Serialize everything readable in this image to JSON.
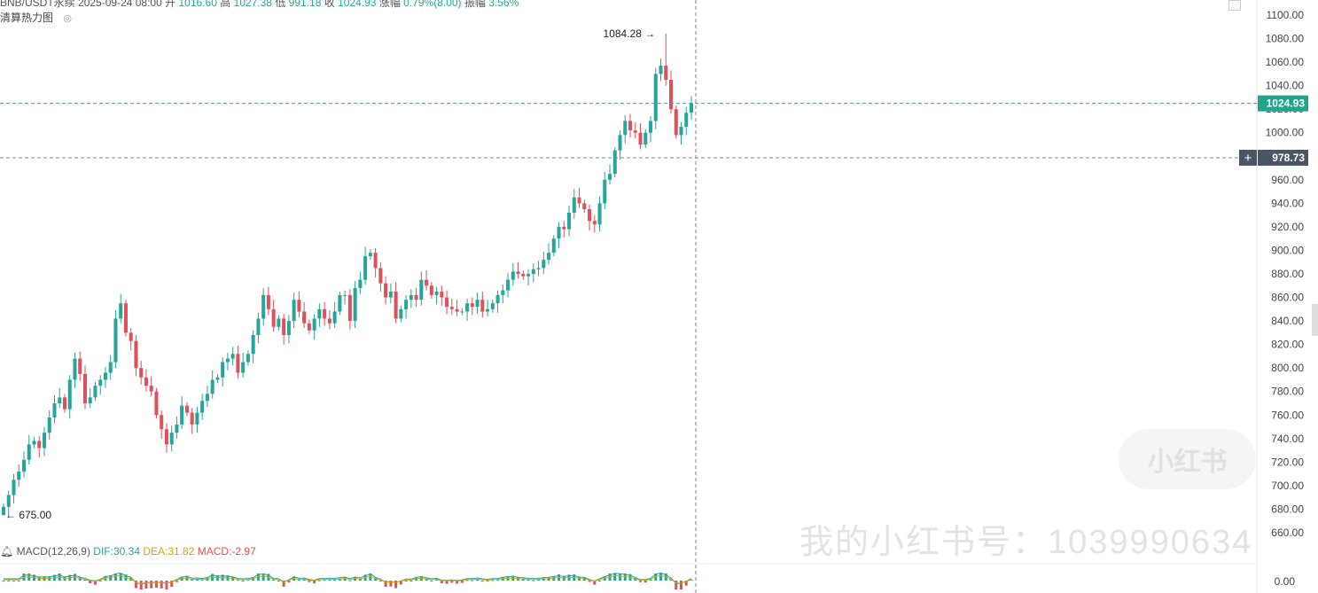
{
  "header": {
    "symbol": "BNB/USDT永续",
    "date": "2025-09-24 08:00",
    "open_label": "开",
    "open": "1016.60",
    "high_label": "高",
    "high": "1027.38",
    "low_label": "低",
    "low": "991.18",
    "close_label": "收",
    "close": "1024.93",
    "change_label": "涨幅",
    "change": "0.79%(8.00)",
    "amplitude_label": "振幅",
    "amplitude": "3.56%"
  },
  "indicator": {
    "heatmap_label": "清算热力图"
  },
  "macd": {
    "label": "MACD(12,26,9)",
    "dif": "DIF:30.34",
    "dea": "DEA:31.82",
    "macd": "MACD:-2.97"
  },
  "colors": {
    "up": "#26a69a",
    "down": "#e0505a",
    "crosshair": "#5b8fb0",
    "last_price_bg": "#1fa58e",
    "cursor_price_bg": "#4a5568"
  },
  "annotations": {
    "high_label": "1084.28",
    "low_label": "675.00"
  },
  "price_tags": {
    "last_price": "1024.93",
    "cursor_price": "978.73"
  },
  "macd_axis_label": "0.00",
  "watermark": {
    "badge": "小红书",
    "text": "我的小红书号：1039990634"
  },
  "chart_data": {
    "type": "candlestick",
    "ylim": [
      640,
      1105
    ],
    "y_ticks": [
      660,
      680,
      700,
      720,
      740,
      760,
      780,
      800,
      820,
      840,
      860,
      880,
      900,
      920,
      940,
      960,
      980,
      1000,
      1020,
      1040,
      1060,
      1080,
      1100
    ],
    "y_tick_labels": [
      "660.00",
      "680.00",
      "700.00",
      "720.00",
      "740.00",
      "760.00",
      "780.00",
      "800.00",
      "820.00",
      "840.00",
      "860.00",
      "880.00",
      "900.00",
      "920.00",
      "940.00",
      "960.00",
      "980.00",
      "1000.00",
      "1020.00",
      "1040.00",
      "1060.00",
      "1080.00",
      "1100.00"
    ],
    "closes": [
      682,
      692,
      705,
      712,
      722,
      735,
      738,
      732,
      745,
      758,
      770,
      775,
      765,
      790,
      808,
      795,
      770,
      775,
      785,
      790,
      796,
      805,
      842,
      855,
      830,
      823,
      800,
      792,
      785,
      780,
      760,
      748,
      735,
      745,
      752,
      768,
      762,
      752,
      762,
      772,
      778,
      790,
      792,
      805,
      808,
      812,
      796,
      805,
      812,
      828,
      842,
      862,
      850,
      835,
      842,
      828,
      840,
      858,
      848,
      838,
      832,
      842,
      850,
      842,
      838,
      848,
      862,
      862,
      840,
      868,
      875,
      895,
      898,
      885,
      872,
      860,
      865,
      842,
      850,
      858,
      862,
      858,
      875,
      870,
      862,
      865,
      860,
      852,
      850,
      848,
      848,
      855,
      852,
      858,
      848,
      850,
      855,
      862,
      866,
      875,
      882,
      880,
      878,
      880,
      884,
      885,
      892,
      898,
      910,
      920,
      918,
      932,
      945,
      940,
      935,
      925,
      922,
      940,
      960,
      965,
      985,
      998,
      1010,
      1002,
      1000,
      990,
      1000,
      1010,
      1050,
      1057,
      1045,
      1020,
      998,
      1005,
      1017,
      1025
    ]
  }
}
